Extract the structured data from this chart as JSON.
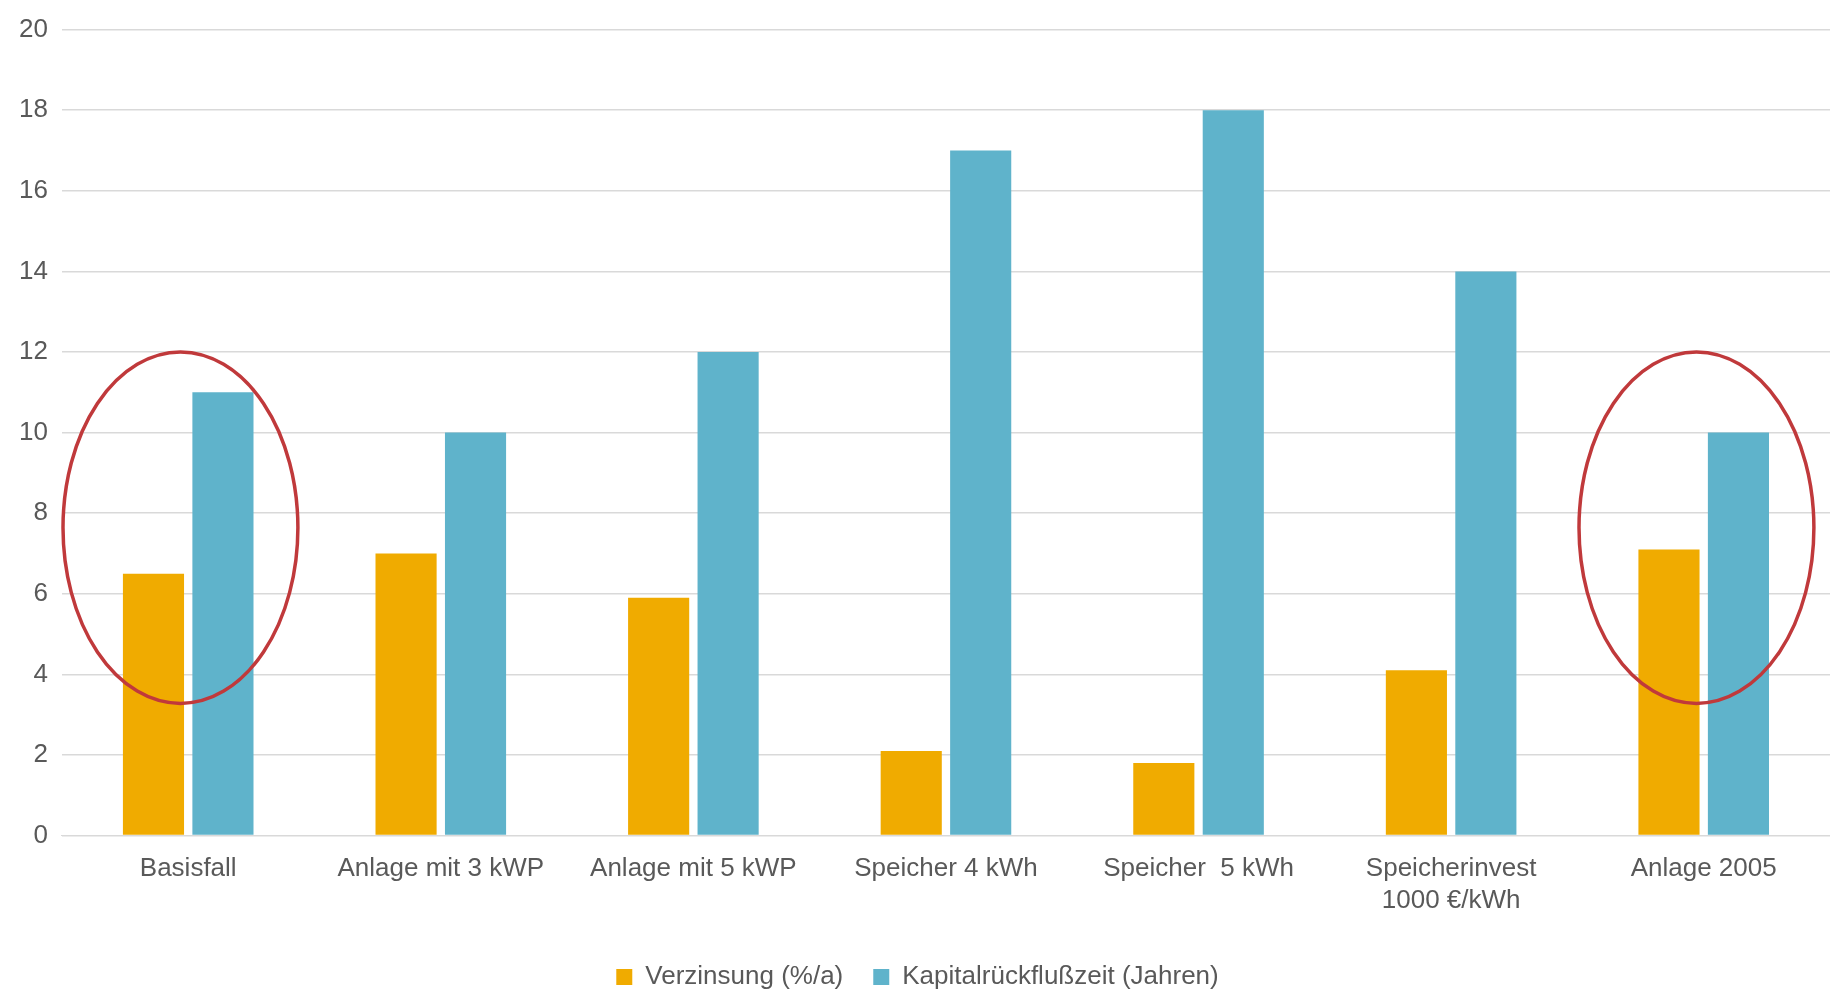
{
  "chart_data": {
    "type": "bar",
    "categories": [
      "Basisfall",
      "Anlage mit 3 kWP",
      "Anlage mit 5 kWP",
      "Speicher 4 kWh",
      "Speicher  5 kWh",
      "Speicherinvest 1000 €/kWh",
      "Anlage 2005"
    ],
    "series": [
      {
        "name": "Verzinsung (%/a)",
        "color": "#f0ab00",
        "values": [
          6.5,
          7.0,
          5.9,
          2.1,
          1.8,
          4.1,
          7.1
        ]
      },
      {
        "name": "Kapitalrückflußzeit (Jahren)",
        "color": "#5fb3cb",
        "values": [
          11,
          10,
          12,
          17,
          18,
          14,
          10
        ]
      }
    ],
    "ylim": [
      0,
      20
    ],
    "yticks": [
      0,
      2,
      4,
      6,
      8,
      10,
      12,
      14,
      16,
      18,
      20
    ],
    "grid": "y",
    "legend": "bottom"
  }
}
